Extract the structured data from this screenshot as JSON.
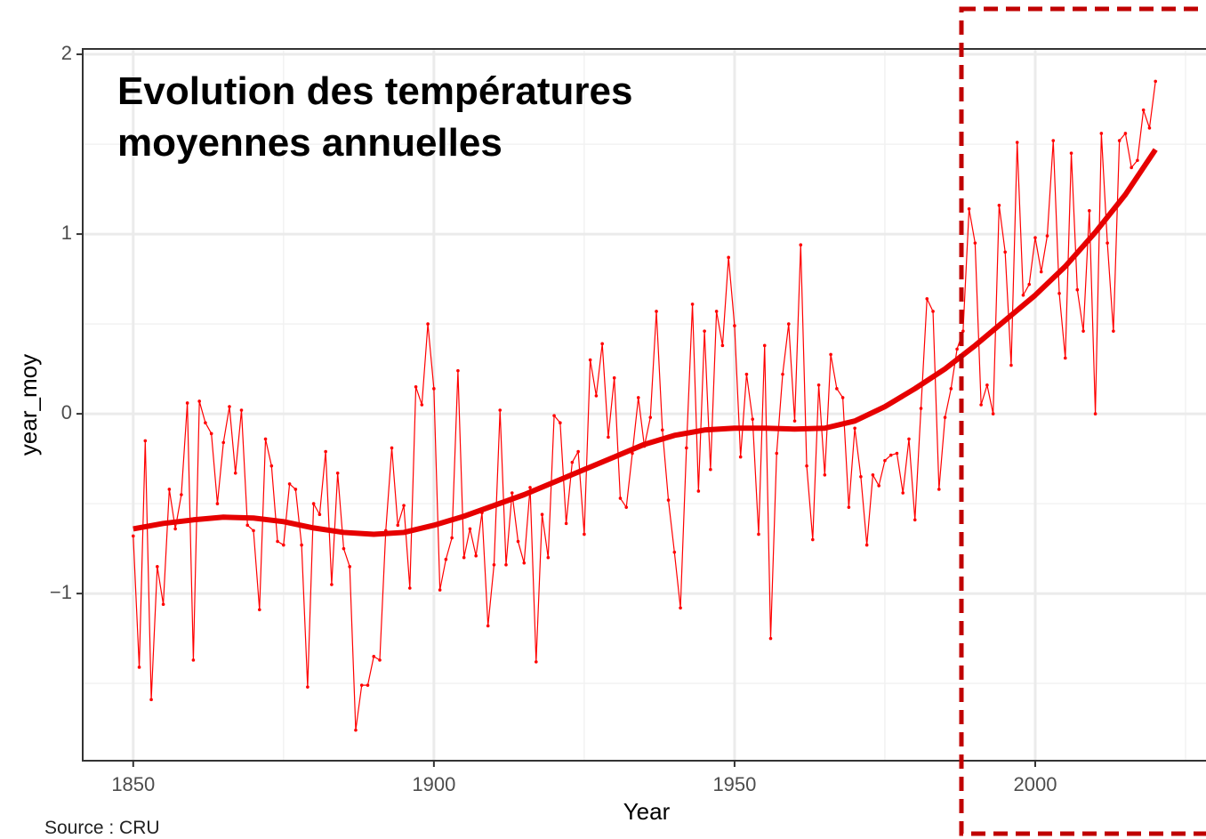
{
  "chart_data": {
    "type": "line",
    "title": "Evolution des températures moyennes annuelles",
    "source": "Source : CRU",
    "xlabel": "Year",
    "ylabel": "year_moy",
    "xlim": [
      1841.6,
      2028.4
    ],
    "ylim": [
      -1.93,
      2.03
    ],
    "xticks": [
      1850,
      1900,
      1950,
      2000
    ],
    "yticks": [
      {
        "value": -1,
        "label": "−1"
      },
      0,
      1,
      2
    ],
    "grid": true,
    "series": [
      {
        "color": "#ff0000",
        "x": [
          1850,
          1851,
          1852,
          1853,
          1854,
          1855,
          1856,
          1857,
          1858,
          1859,
          1860,
          1861,
          1862,
          1863,
          1864,
          1865,
          1866,
          1867,
          1868,
          1869,
          1870,
          1871,
          1872,
          1873,
          1874,
          1875,
          1876,
          1877,
          1878,
          1879,
          1880,
          1881,
          1882,
          1883,
          1884,
          1885,
          1886,
          1887,
          1888,
          1889,
          1890,
          1891,
          1892,
          1893,
          1894,
          1895,
          1896,
          1897,
          1898,
          1899,
          1900,
          1901,
          1902,
          1903,
          1904,
          1905,
          1906,
          1907,
          1908,
          1909,
          1910,
          1911,
          1912,
          1913,
          1914,
          1915,
          1916,
          1917,
          1918,
          1919,
          1920,
          1921,
          1922,
          1923,
          1924,
          1925,
          1926,
          1927,
          1928,
          1929,
          1930,
          1931,
          1932,
          1933,
          1934,
          1935,
          1936,
          1937,
          1938,
          1939,
          1940,
          1941,
          1942,
          1943,
          1944,
          1945,
          1946,
          1947,
          1948,
          1949,
          1950,
          1951,
          1952,
          1953,
          1954,
          1955,
          1956,
          1957,
          1958,
          1959,
          1960,
          1961,
          1962,
          1963,
          1964,
          1965,
          1966,
          1967,
          1968,
          1969,
          1970,
          1971,
          1972,
          1973,
          1974,
          1975,
          1976,
          1977,
          1978,
          1979,
          1980,
          1981,
          1982,
          1983,
          1984,
          1985,
          1986,
          1987,
          1988,
          1989,
          1990,
          1991,
          1992,
          1993,
          1994,
          1995,
          1996,
          1997,
          1998,
          1999,
          2000,
          2001,
          2002,
          2003,
          2004,
          2005,
          2006,
          2007,
          2008,
          2009,
          2010,
          2011,
          2012,
          2013,
          2014,
          2015,
          2016,
          2017,
          2018,
          2019,
          2020
        ],
        "values": [
          -0.68,
          -1.41,
          -0.15,
          -1.59,
          -0.85,
          -1.06,
          -0.42,
          -0.64,
          -0.45,
          0.06,
          -1.37,
          0.07,
          -0.05,
          -0.11,
          -0.5,
          -0.16,
          0.04,
          -0.33,
          0.02,
          -0.62,
          -0.65,
          -1.09,
          -0.14,
          -0.29,
          -0.71,
          -0.73,
          -0.39,
          -0.42,
          -0.73,
          -1.52,
          -0.5,
          -0.56,
          -0.21,
          -0.95,
          -0.33,
          -0.75,
          -0.85,
          -1.76,
          -1.51,
          -1.51,
          -1.35,
          -1.37,
          -0.65,
          -0.19,
          -0.62,
          -0.51,
          -0.97,
          0.15,
          0.05,
          0.5,
          0.14,
          -0.98,
          -0.81,
          -0.69,
          0.24,
          -0.8,
          -0.64,
          -0.79,
          -0.55,
          -1.18,
          -0.84,
          0.02,
          -0.84,
          -0.44,
          -0.71,
          -0.83,
          -0.41,
          -1.38,
          -0.56,
          -0.8,
          -0.01,
          -0.05,
          -0.61,
          -0.27,
          -0.21,
          -0.67,
          0.3,
          0.1,
          0.39,
          -0.13,
          0.2,
          -0.47,
          -0.52,
          -0.22,
          0.09,
          -0.18,
          -0.02,
          0.57,
          -0.09,
          -0.48,
          -0.77,
          -1.08,
          -0.19,
          0.61,
          -0.43,
          0.46,
          -0.31,
          0.57,
          0.38,
          0.87,
          0.49,
          -0.24,
          0.22,
          -0.03,
          -0.67,
          0.38,
          -1.25,
          -0.22,
          0.22,
          0.5,
          -0.04,
          0.94,
          -0.29,
          -0.7,
          0.16,
          -0.34,
          0.33,
          0.14,
          0.09,
          -0.52,
          -0.08,
          -0.35,
          -0.73,
          -0.34,
          -0.4,
          -0.26,
          -0.23,
          -0.22,
          -0.44,
          -0.14,
          -0.59,
          0.03,
          0.64,
          0.57,
          -0.42,
          -0.02,
          0.14,
          0.36,
          0.46,
          1.14,
          0.95,
          0.05,
          0.16,
          0.0,
          1.16,
          0.9,
          0.27,
          1.51,
          0.66,
          0.72,
          0.98,
          0.79,
          0.99,
          1.52,
          0.67,
          0.31,
          1.45,
          0.69,
          0.46,
          1.13,
          0.0,
          1.56,
          0.95,
          0.46,
          1.52,
          1.56,
          1.37,
          1.41,
          1.69,
          1.59,
          1.85
        ]
      },
      {
        "color": "#e60000",
        "x": [
          1850,
          1855,
          1860,
          1865,
          1870,
          1875,
          1880,
          1885,
          1890,
          1895,
          1900,
          1905,
          1910,
          1915,
          1920,
          1925,
          1930,
          1935,
          1940,
          1945,
          1950,
          1955,
          1960,
          1965,
          1970,
          1975,
          1980,
          1985,
          1990,
          1995,
          2000,
          2005,
          2010,
          2015,
          2020
        ],
        "values": [
          -0.64,
          -0.61,
          -0.59,
          -0.575,
          -0.58,
          -0.6,
          -0.635,
          -0.66,
          -0.67,
          -0.66,
          -0.62,
          -0.57,
          -0.51,
          -0.45,
          -0.38,
          -0.31,
          -0.24,
          -0.17,
          -0.12,
          -0.09,
          -0.08,
          -0.08,
          -0.085,
          -0.08,
          -0.04,
          0.04,
          0.14,
          0.25,
          0.38,
          0.52,
          0.66,
          0.82,
          1.01,
          1.22,
          1.47
        ]
      }
    ]
  }
}
